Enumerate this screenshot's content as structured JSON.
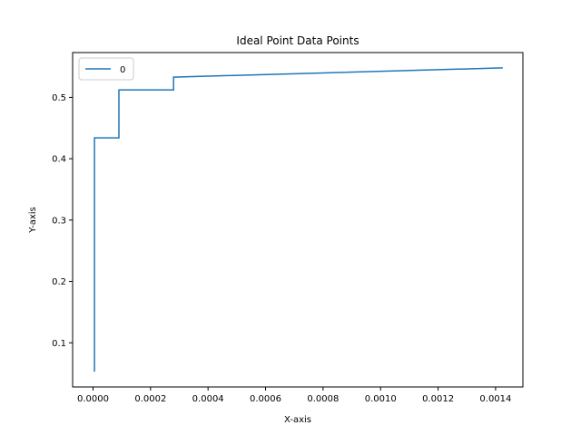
{
  "chart_data": {
    "type": "line",
    "title": "Ideal Point Data Points",
    "xlabel": "X-axis",
    "ylabel": "Y-axis",
    "xlim": [
      -7.1e-05,
      0.001495
    ],
    "ylim": [
      0.028,
      0.573
    ],
    "x_ticks": [
      0.0,
      0.0002,
      0.0004,
      0.0006,
      0.0008,
      0.001,
      0.0012,
      0.0014
    ],
    "x_tick_labels": [
      "0.0000",
      "0.0002",
      "0.0004",
      "0.0006",
      "0.0008",
      "0.0010",
      "0.0012",
      "0.0014"
    ],
    "y_ticks": [
      0.1,
      0.2,
      0.3,
      0.4,
      0.5
    ],
    "y_tick_labels": [
      "0.1",
      "0.2",
      "0.3",
      "0.4",
      "0.5"
    ],
    "grid": false,
    "legend": {
      "placement": "upper-left",
      "entries": [
        "0"
      ]
    },
    "series": [
      {
        "name": "0",
        "color": "#1f77b4",
        "x": [
          5e-06,
          5e-06,
          9e-05,
          9e-05,
          0.00028,
          0.00028,
          0.001425
        ],
        "y": [
          0.053,
          0.434,
          0.434,
          0.512,
          0.512,
          0.533,
          0.548
        ]
      }
    ]
  }
}
